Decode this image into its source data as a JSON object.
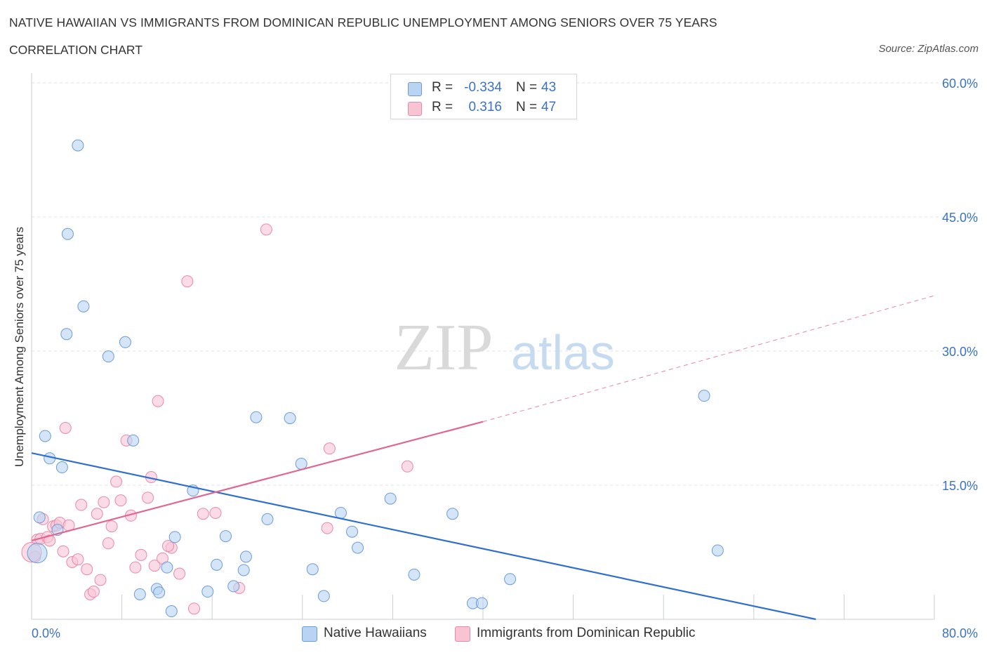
{
  "header": {
    "title": "NATIVE HAWAIIAN VS IMMIGRANTS FROM DOMINICAN REPUBLIC UNEMPLOYMENT AMONG SENIORS OVER 75 YEARS",
    "subtitle": "CORRELATION CHART",
    "source": "Source: ZipAtlas.com"
  },
  "watermark": {
    "zip": "ZIP",
    "atlas": "atlas"
  },
  "legend": {
    "rows": [
      {
        "r_label": "R =",
        "r_value": "-0.334",
        "n_label": "N =",
        "n_value": "43"
      },
      {
        "r_label": "R =",
        "r_value": "0.316",
        "n_label": "N =",
        "n_value": "47"
      }
    ]
  },
  "colors": {
    "blue_fill": "#b9d3f3",
    "blue_stroke": "#6c9bd8",
    "blue_line": "#2f6fd0",
    "pink_fill": "#f8c3d3",
    "pink_stroke": "#e88aa6",
    "pink_line": "#e0678f",
    "grid": "#dde1e8",
    "axis_label": "#3a72c8"
  },
  "chart_data": {
    "type": "scatter",
    "title": "NATIVE HAWAIIAN VS IMMIGRANTS FROM DOMINICAN REPUBLIC UNEMPLOYMENT AMONG SENIORS OVER 75 YEARS",
    "xlabel": "",
    "ylabel": "Unemployment Among Seniors over 75 years",
    "xlim": [
      0,
      80
    ],
    "ylim": [
      0,
      60
    ],
    "x_tick_labels": [
      "0.0%",
      "80.0%"
    ],
    "y_tick_labels": [
      "15.0%",
      "30.0%",
      "45.0%",
      "60.0%"
    ],
    "y_ticks": [
      15,
      30,
      45,
      60
    ],
    "grid": true,
    "series": [
      {
        "name": "Native Hawaiians",
        "color": "blue",
        "points": [
          [
            0.5,
            7.4
          ],
          [
            0.7,
            11.4
          ],
          [
            1.2,
            20.5
          ],
          [
            1.6,
            18.0
          ],
          [
            2.3,
            10.0
          ],
          [
            2.7,
            17.0
          ],
          [
            3.2,
            43.1
          ],
          [
            4.1,
            53.0
          ],
          [
            4.6,
            35.0
          ],
          [
            3.1,
            31.9
          ],
          [
            6.8,
            29.4
          ],
          [
            8.3,
            31.0
          ],
          [
            9.0,
            20.0
          ],
          [
            9.6,
            2.8
          ],
          [
            11.1,
            3.4
          ],
          [
            11.3,
            3.0
          ],
          [
            12.0,
            5.8
          ],
          [
            12.4,
            0.9
          ],
          [
            12.7,
            9.2
          ],
          [
            14.3,
            14.4
          ],
          [
            15.6,
            3.1
          ],
          [
            16.4,
            6.1
          ],
          [
            17.2,
            9.3
          ],
          [
            17.9,
            3.7
          ],
          [
            18.8,
            5.5
          ],
          [
            19.0,
            7.0
          ],
          [
            19.9,
            22.6
          ],
          [
            20.9,
            11.2
          ],
          [
            22.9,
            22.5
          ],
          [
            23.9,
            17.4
          ],
          [
            24.9,
            5.6
          ],
          [
            25.9,
            2.6
          ],
          [
            27.4,
            11.9
          ],
          [
            28.4,
            9.8
          ],
          [
            28.9,
            8.0
          ],
          [
            31.8,
            13.5
          ],
          [
            33.9,
            5.0
          ],
          [
            37.3,
            11.8
          ],
          [
            39.1,
            1.8
          ],
          [
            39.9,
            1.8
          ],
          [
            42.4,
            4.5
          ],
          [
            59.6,
            25.0
          ],
          [
            60.8,
            7.7
          ]
        ]
      },
      {
        "name": "Immigrants from Dominican Republic",
        "color": "pink",
        "points": [
          [
            0.3,
            7.0
          ],
          [
            0.5,
            8.9
          ],
          [
            0.8,
            9.0
          ],
          [
            1.0,
            11.2
          ],
          [
            1.4,
            9.2
          ],
          [
            1.6,
            8.8
          ],
          [
            1.9,
            10.4
          ],
          [
            2.2,
            10.5
          ],
          [
            2.5,
            10.8
          ],
          [
            2.8,
            7.6
          ],
          [
            3.0,
            21.4
          ],
          [
            3.3,
            10.5
          ],
          [
            3.6,
            6.4
          ],
          [
            4.1,
            6.7
          ],
          [
            4.4,
            12.8
          ],
          [
            4.9,
            5.6
          ],
          [
            5.2,
            2.8
          ],
          [
            5.5,
            3.1
          ],
          [
            5.8,
            11.8
          ],
          [
            6.1,
            4.4
          ],
          [
            6.4,
            13.1
          ],
          [
            6.8,
            8.5
          ],
          [
            7.1,
            10.4
          ],
          [
            7.5,
            15.4
          ],
          [
            7.9,
            13.3
          ],
          [
            8.4,
            20.0
          ],
          [
            8.8,
            11.6
          ],
          [
            9.2,
            5.8
          ],
          [
            9.7,
            7.2
          ],
          [
            10.3,
            13.6
          ],
          [
            10.6,
            15.9
          ],
          [
            10.9,
            6.0
          ],
          [
            11.2,
            24.4
          ],
          [
            11.6,
            6.8
          ],
          [
            12.4,
            8.0
          ],
          [
            12.1,
            8.2
          ],
          [
            13.1,
            5.1
          ],
          [
            13.8,
            37.8
          ],
          [
            14.4,
            1.2
          ],
          [
            15.2,
            11.8
          ],
          [
            16.3,
            11.9
          ],
          [
            18.4,
            3.5
          ],
          [
            20.8,
            43.6
          ],
          [
            26.2,
            10.2
          ],
          [
            26.4,
            19.1
          ],
          [
            33.3,
            17.1
          ],
          [
            0.0,
            7.5
          ]
        ]
      }
    ],
    "trendlines": [
      {
        "series": "Native Hawaiians",
        "x": [
          0,
          69.5
        ],
        "y": [
          18.6,
          0.0
        ],
        "style": "solid"
      },
      {
        "series": "Immigrants from Dominican Republic",
        "x": [
          0,
          40
        ],
        "y": [
          8.8,
          22.1
        ],
        "style": "solid"
      },
      {
        "series": "Immigrants from Dominican Republic",
        "x": [
          40,
          80
        ],
        "y": [
          22.1,
          36.2
        ],
        "style": "dashed"
      }
    ]
  },
  "bottom_legend": {
    "blue": "Native Hawaiians",
    "pink": "Immigrants from Dominican Republic"
  }
}
